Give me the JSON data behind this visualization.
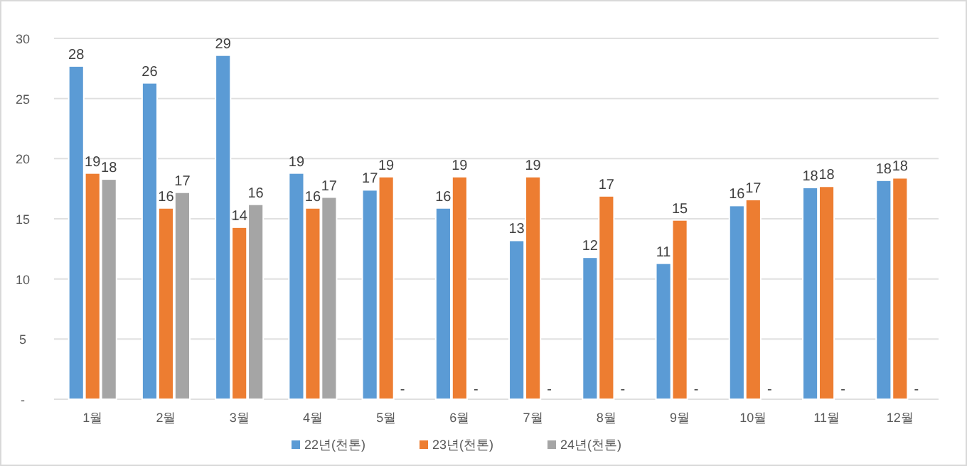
{
  "chart_data": {
    "type": "bar",
    "categories": [
      "1월",
      "2월",
      "3월",
      "4월",
      "5월",
      "6월",
      "7월",
      "8월",
      "9월",
      "10월",
      "11월",
      "12월"
    ],
    "series": [
      {
        "name": "22년(천톤)",
        "color": "#5b9bd5",
        "values": [
          27.7,
          26.3,
          28.6,
          18.8,
          17.4,
          15.9,
          13.2,
          11.8,
          11.3,
          16.1,
          17.6,
          18.2
        ],
        "value_labels": [
          "28",
          "26",
          "29",
          "19",
          "17",
          "16",
          "13",
          "12",
          "11",
          "16",
          "18",
          "18"
        ]
      },
      {
        "name": "23년(천톤)",
        "color": "#ed7d31",
        "values": [
          18.8,
          15.9,
          14.3,
          15.9,
          18.5,
          18.5,
          18.5,
          16.9,
          14.9,
          16.6,
          17.7,
          18.4
        ],
        "value_labels": [
          "19",
          "16",
          "14",
          "16",
          "19",
          "19",
          "19",
          "17",
          "15",
          "17",
          "18",
          "18"
        ]
      },
      {
        "name": "24년(천톤)",
        "color": "#a5a5a5",
        "values": [
          18.3,
          17.2,
          16.2,
          16.8,
          null,
          null,
          null,
          null,
          null,
          null,
          null,
          null
        ],
        "value_labels": [
          "18",
          "17",
          "16",
          "17",
          "-",
          "-",
          "-",
          "-",
          "-",
          "-",
          "-",
          "-"
        ]
      }
    ],
    "ylim": [
      0,
      30
    ],
    "yticks": [
      {
        "value": 0,
        "label": "-"
      },
      5,
      10,
      15,
      20,
      25,
      30
    ],
    "grid": "y",
    "legend": "bottom"
  }
}
